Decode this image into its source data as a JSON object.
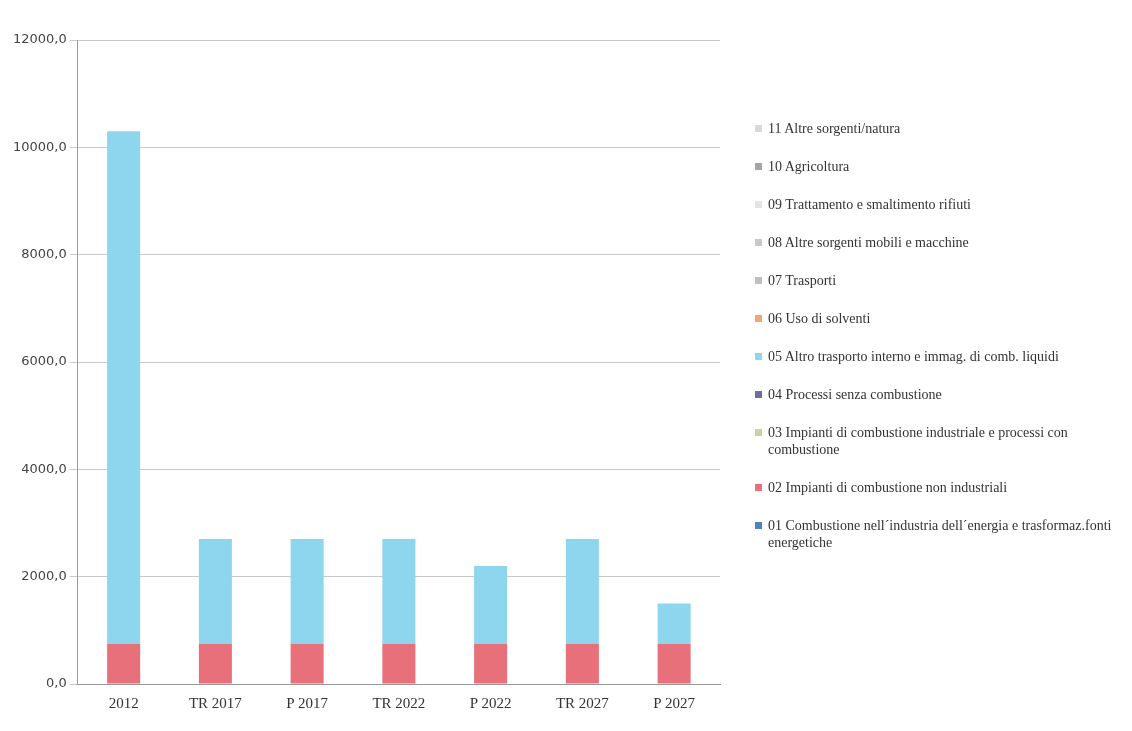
{
  "chart_data": {
    "type": "bar",
    "stacked": true,
    "grid": "y",
    "legend": "right",
    "categories": [
      "2012",
      "TR 2017",
      "P 2017",
      "TR 2022",
      "P 2022",
      "TR 2027",
      "P 2027"
    ],
    "ylim": [
      0,
      12000
    ],
    "yticks": [
      {
        "value": 0,
        "label": "0,0"
      },
      {
        "value": 2000,
        "label": "2000,0"
      },
      {
        "value": 4000,
        "label": "4000,0"
      },
      {
        "value": 6000,
        "label": "6000,0"
      },
      {
        "value": 8000,
        "label": "8000,0"
      },
      {
        "value": 10000,
        "label": "10000,0"
      },
      {
        "value": 12000,
        "label": "12000,0"
      }
    ],
    "series": [
      {
        "name": "01  Combustione nell´industria dell´energia e trasformaz.fonti energetiche",
        "color": "#4f81bd",
        "values": [
          0,
          0,
          0,
          0,
          0,
          0,
          0
        ]
      },
      {
        "name": "02  Impianti di combustione non industriali",
        "color": "#e8707a",
        "values": [
          750,
          750,
          750,
          750,
          750,
          750,
          750
        ]
      },
      {
        "name": "03  Impianti di combustione industriale e processi con combustione",
        "color": "#c4d79b",
        "values": [
          0,
          0,
          0,
          0,
          0,
          0,
          0
        ]
      },
      {
        "name": "04  Processi senza combustione",
        "color": "#6e6e9e",
        "values": [
          0,
          0,
          0,
          0,
          0,
          0,
          0
        ]
      },
      {
        "name": "05  Altro trasporto interno e immag. di comb. liquidi",
        "color": "#8dd6ee",
        "values": [
          9550,
          1950,
          1950,
          1950,
          1450,
          1950,
          750
        ]
      },
      {
        "name": "06  Uso di solventi",
        "color": "#f4a671",
        "values": [
          0,
          0,
          0,
          0,
          0,
          0,
          0
        ]
      },
      {
        "name": "07  Trasporti",
        "color": "#bfbfbf",
        "values": [
          0,
          0,
          0,
          0,
          0,
          0,
          0
        ]
      },
      {
        "name": "08  Altre sorgenti mobili e macchine",
        "color": "#c8c8c8",
        "values": [
          0,
          0,
          0,
          0,
          0,
          0,
          0
        ]
      },
      {
        "name": "09  Trattamento e smaltimento rifiuti",
        "color": "#e4e4e4",
        "values": [
          0,
          0,
          0,
          0,
          0,
          0,
          0
        ]
      },
      {
        "name": "10  Agricoltura",
        "color": "#a6a6a6",
        "values": [
          0,
          0,
          0,
          0,
          0,
          0,
          0
        ]
      },
      {
        "name": "11  Altre sorgenti/natura",
        "color": "#d9d9d9",
        "values": [
          0,
          0,
          0,
          0,
          0,
          0,
          0
        ]
      }
    ]
  }
}
